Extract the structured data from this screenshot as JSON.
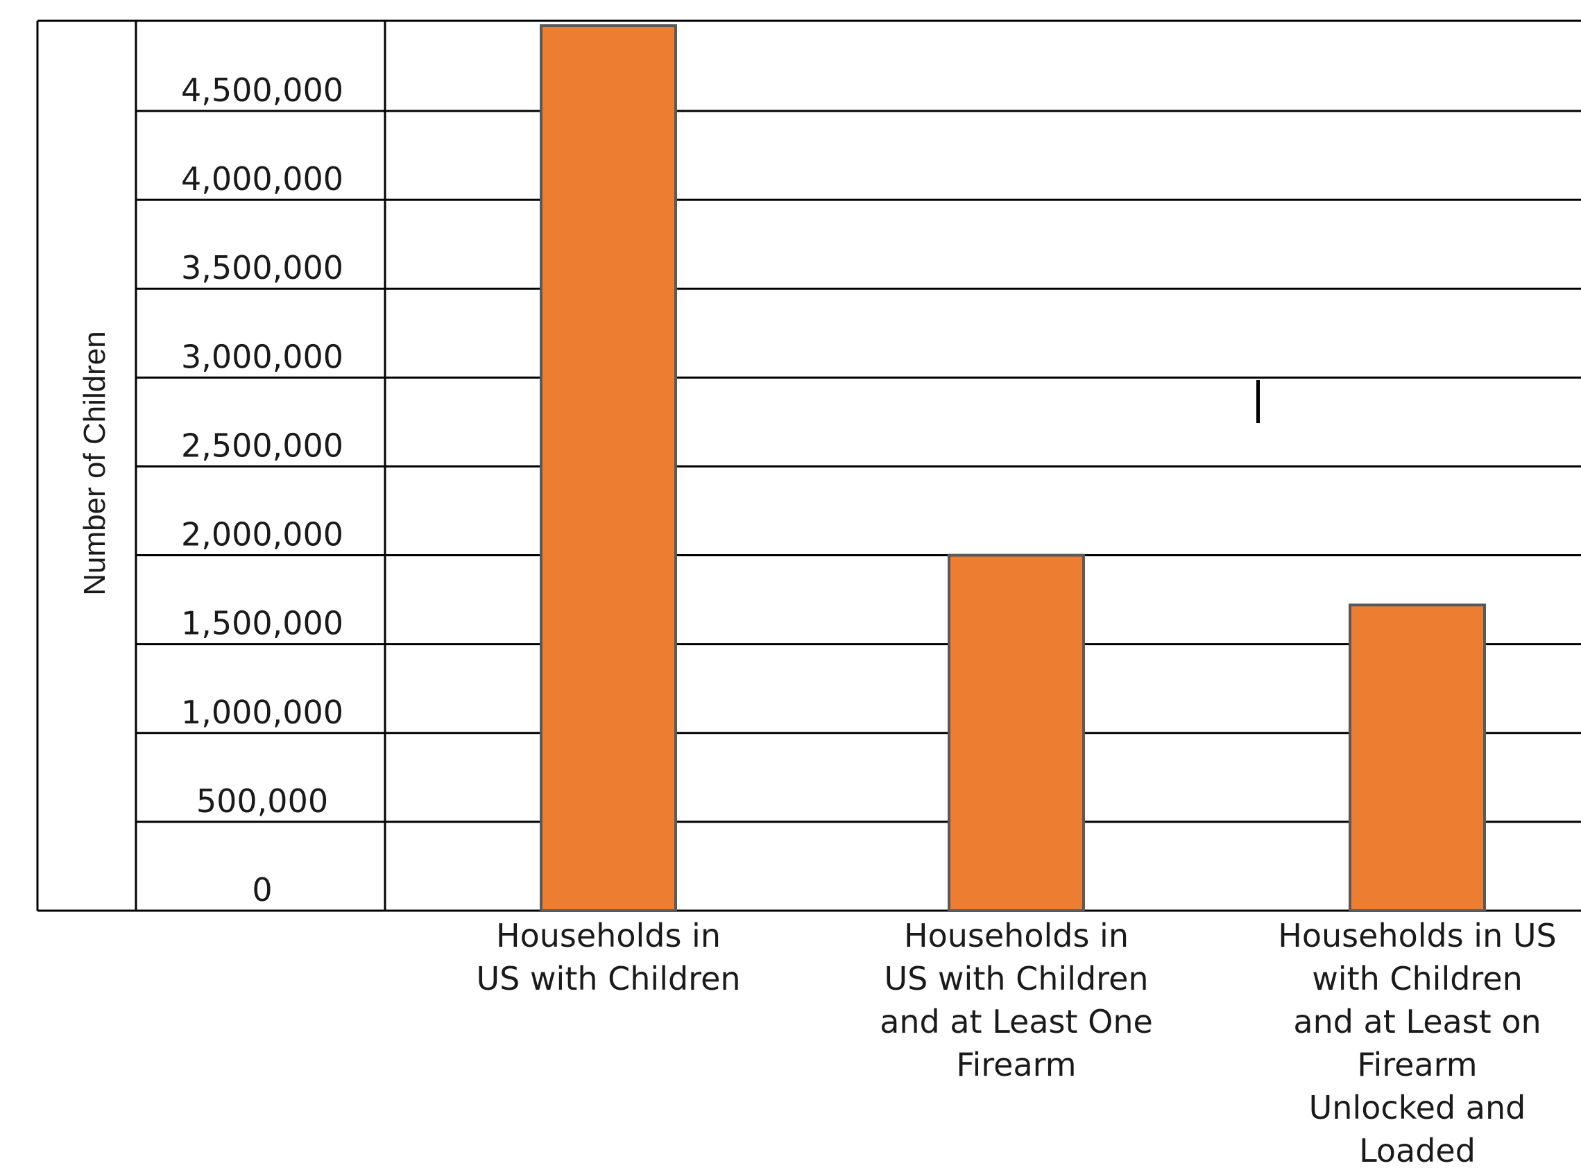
{
  "chart_data": {
    "type": "bar",
    "title": "",
    "xlabel": "",
    "ylabel": "Number of Children",
    "ylim": [
      0,
      5000000
    ],
    "grid": true,
    "legend": "none",
    "bar_color": "#ED7D31",
    "bar_edge_color": "#595959",
    "yticks": [
      0,
      500000,
      1000000,
      1500000,
      2000000,
      2500000,
      3000000,
      3500000,
      4000000,
      4500000
    ],
    "ytick_labels": [
      "0",
      "500,000",
      "1,000,000",
      "1,500,000",
      "2,000,000",
      "2,500,000",
      "3,000,000",
      "3,500,000",
      "4,000,000",
      "4,500,000"
    ],
    "categories": [
      [
        "Households in",
        "US with Children"
      ],
      [
        "Households in",
        "US with Children",
        "and at Least One",
        "Firearm"
      ],
      [
        "Households in US",
        "with Children",
        "and at Least on",
        "Firearm",
        "Unlocked and",
        "Loaded"
      ]
    ],
    "values": [
      4980000,
      2000000,
      1720000
    ]
  }
}
